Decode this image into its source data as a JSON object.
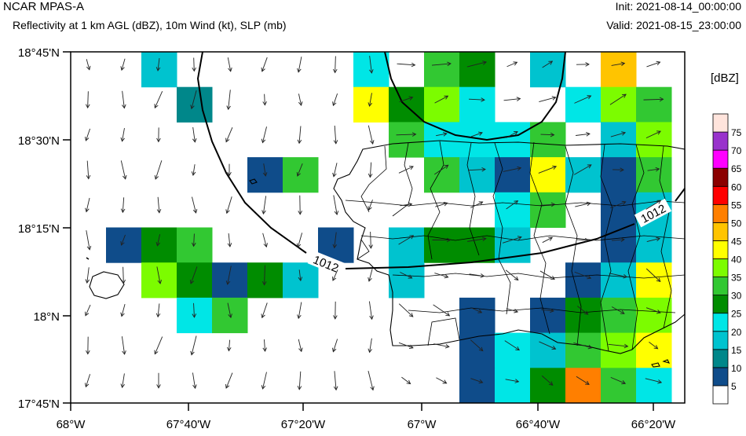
{
  "header": {
    "model": "NCAR MPAS-A",
    "description": "Reflectivity at 1 km AGL (dBZ), 10m Wind (kt), SLP (mb)",
    "init": "Init: 2021-08-14_00:00:00",
    "valid": "Valid: 2021-08-15_23:00:00"
  },
  "axes": {
    "lat_labels": [
      "18°45'N",
      "18°30'N",
      "18°15'N",
      "18°N",
      "17°45'N"
    ],
    "lon_labels": [
      "68°W",
      "67°40'W",
      "67°20'W",
      "67°W",
      "66°40'W",
      "66°20'W"
    ]
  },
  "isobar_label": "1012",
  "colorbar": {
    "title": "[dBZ]",
    "levels": [
      "5",
      "10",
      "15",
      "20",
      "25",
      "30",
      "35",
      "40",
      "45",
      "50",
      "55",
      "60",
      "65",
      "70",
      "75"
    ],
    "colors": [
      "#ffffff",
      "#0f4c8a",
      "#00878a",
      "#00c3cf",
      "#00e6e6",
      "#008c00",
      "#32c832",
      "#7cfc00",
      "#ffff00",
      "#ffc400",
      "#ff7f00",
      "#ff0000",
      "#8b0000",
      "#ff00ff",
      "#9932cc",
      "#ffe4dc"
    ]
  },
  "colors": {
    "map_lines": "#000000",
    "background": "#ffffff"
  }
}
